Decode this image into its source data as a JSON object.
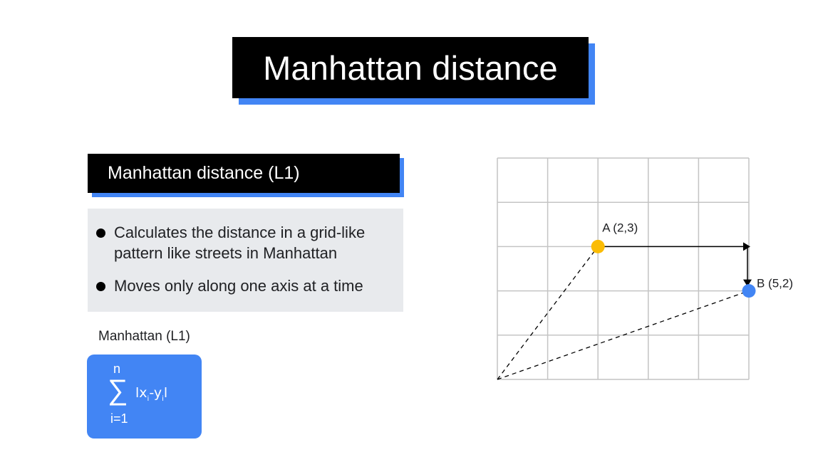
{
  "title": "Manhattan distance",
  "section_header": "Manhattan distance (L1)",
  "bullets": [
    "Calculates the distance in a grid-like pattern like streets in Manhattan",
    "Moves only along one axis at a time"
  ],
  "formula": {
    "label": "Manhattan (L1)",
    "upper_limit": "n",
    "sigma": "∑",
    "expr_open": "lx",
    "expr_sub1": "i",
    "expr_mid": "-y",
    "expr_sub2": "i",
    "expr_close": "l",
    "lower_limit": "i=1"
  },
  "diagram": {
    "grid_columns": 5,
    "grid_rows": 5,
    "points": [
      {
        "id": "A",
        "label": "A (2,3)",
        "x": 2,
        "y": 3,
        "color": "#fbbc04"
      },
      {
        "id": "B",
        "label": "B (5,2)",
        "x": 5,
        "y": 2,
        "color": "#4285f4"
      }
    ]
  },
  "colors": {
    "accent": "#4285f4",
    "panel": "#e8eaed",
    "grid": "#c4c4c4",
    "point_a": "#fbbc04",
    "point_b": "#4285f4"
  }
}
